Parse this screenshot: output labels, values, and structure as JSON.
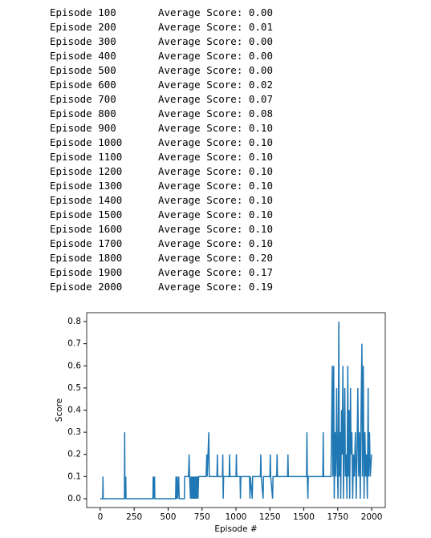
{
  "log": {
    "rows": [
      {
        "episode": "Episode 100",
        "score": "Average Score: 0.00"
      },
      {
        "episode": "Episode 200",
        "score": "Average Score: 0.01"
      },
      {
        "episode": "Episode 300",
        "score": "Average Score: 0.00"
      },
      {
        "episode": "Episode 400",
        "score": "Average Score: 0.00"
      },
      {
        "episode": "Episode 500",
        "score": "Average Score: 0.00"
      },
      {
        "episode": "Episode 600",
        "score": "Average Score: 0.02"
      },
      {
        "episode": "Episode 700",
        "score": "Average Score: 0.07"
      },
      {
        "episode": "Episode 800",
        "score": "Average Score: 0.08"
      },
      {
        "episode": "Episode 900",
        "score": "Average Score: 0.10"
      },
      {
        "episode": "Episode 1000",
        "score": "Average Score: 0.10"
      },
      {
        "episode": "Episode 1100",
        "score": "Average Score: 0.10"
      },
      {
        "episode": "Episode 1200",
        "score": "Average Score: 0.10"
      },
      {
        "episode": "Episode 1300",
        "score": "Average Score: 0.10"
      },
      {
        "episode": "Episode 1400",
        "score": "Average Score: 0.10"
      },
      {
        "episode": "Episode 1500",
        "score": "Average Score: 0.10"
      },
      {
        "episode": "Episode 1600",
        "score": "Average Score: 0.10"
      },
      {
        "episode": "Episode 1700",
        "score": "Average Score: 0.10"
      },
      {
        "episode": "Episode 1800",
        "score": "Average Score: 0.20"
      },
      {
        "episode": "Episode 1900",
        "score": "Average Score: 0.17"
      },
      {
        "episode": "Episode 2000",
        "score": "Average Score: 0.19"
      }
    ]
  },
  "chart_data": {
    "type": "line",
    "x_label": "Episode #",
    "y_label": "Score",
    "xlim": [
      -100,
      2100
    ],
    "xticks": [
      0,
      250,
      500,
      750,
      1000,
      1250,
      1500,
      1750,
      2000
    ],
    "ylim": [
      -0.04,
      0.84
    ],
    "yticks": [
      {
        "value": 0,
        "label": "0.0"
      },
      0.1,
      0.2,
      0.3,
      0.4,
      0.5,
      0.6,
      0.7,
      0.8
    ],
    "x": [
      0,
      18,
      20,
      22,
      178,
      180,
      182,
      188,
      190,
      388,
      390,
      392,
      400,
      402,
      555,
      558,
      562,
      566,
      570,
      578,
      582,
      620,
      622,
      650,
      655,
      658,
      665,
      668,
      672,
      676,
      680,
      684,
      688,
      692,
      696,
      700,
      704,
      708,
      712,
      716,
      720,
      725,
      780,
      785,
      788,
      800,
      803,
      860,
      863,
      866,
      900,
      903,
      906,
      909,
      950,
      953,
      956,
      1000,
      1003,
      1006,
      1030,
      1033,
      1036,
      1100,
      1103,
      1106,
      1120,
      1123,
      1180,
      1183,
      1186,
      1200,
      1203,
      1250,
      1253,
      1256,
      1270,
      1273,
      1300,
      1303,
      1306,
      1380,
      1383,
      1386,
      1520,
      1523,
      1526,
      1530,
      1533,
      1640,
      1643,
      1646,
      1700,
      1710,
      1714,
      1720,
      1724,
      1730,
      1736,
      1742,
      1746,
      1752,
      1758,
      1762,
      1768,
      1772,
      1778,
      1782,
      1788,
      1792,
      1798,
      1802,
      1806,
      1812,
      1818,
      1824,
      1828,
      1834,
      1838,
      1844,
      1848,
      1854,
      1860,
      1866,
      1872,
      1880,
      1886,
      1892,
      1898,
      1904,
      1910,
      1916,
      1922,
      1928,
      1932,
      1938,
      1944,
      1950,
      1956,
      1962,
      1968,
      1974,
      1978,
      1984,
      1990,
      1999
    ],
    "series": [
      {
        "name": "Score",
        "color": "#1f77b4",
        "values": [
          0,
          0,
          0.1,
          0,
          0,
          0.3,
          0,
          0.1,
          0,
          0,
          0.1,
          0,
          0.1,
          0,
          0,
          0.1,
          0,
          0.1,
          0,
          0.1,
          0,
          0,
          0.1,
          0.1,
          0.2,
          0.1,
          0,
          0.1,
          0,
          0.1,
          0,
          0.1,
          0,
          0.1,
          0,
          0.1,
          0,
          0.1,
          0,
          0.1,
          0,
          0.1,
          0.1,
          0.2,
          0.1,
          0.3,
          0.1,
          0.1,
          0.2,
          0.1,
          0.1,
          0.2,
          0,
          0.1,
          0.1,
          0.2,
          0.1,
          0.1,
          0.2,
          0.1,
          0.1,
          0,
          0.1,
          0.1,
          0,
          0.1,
          0,
          0.1,
          0.1,
          0.2,
          0.1,
          0,
          0.1,
          0.1,
          0.2,
          0.1,
          0,
          0.1,
          0.1,
          0.2,
          0.1,
          0.1,
          0.2,
          0.1,
          0.1,
          0.3,
          0.1,
          0,
          0.1,
          0.1,
          0.3,
          0.1,
          0.1,
          0.6,
          0.1,
          0.6,
          0,
          0.3,
          0.1,
          0.5,
          0.2,
          0,
          0.8,
          0.1,
          0.3,
          0,
          0.4,
          0.2,
          0.6,
          0,
          0.3,
          0.5,
          0.1,
          0.2,
          0,
          0.6,
          0.1,
          0.4,
          0,
          0.5,
          0.2,
          0.3,
          0,
          0.2,
          0.1,
          0.3,
          0,
          0.2,
          0.5,
          0.1,
          0.3,
          0,
          0.4,
          0.7,
          0.1,
          0.6,
          0,
          0.3,
          0.1,
          0.2,
          0,
          0.5,
          0.1,
          0.3,
          0.1,
          0.2
        ]
      }
    ]
  }
}
